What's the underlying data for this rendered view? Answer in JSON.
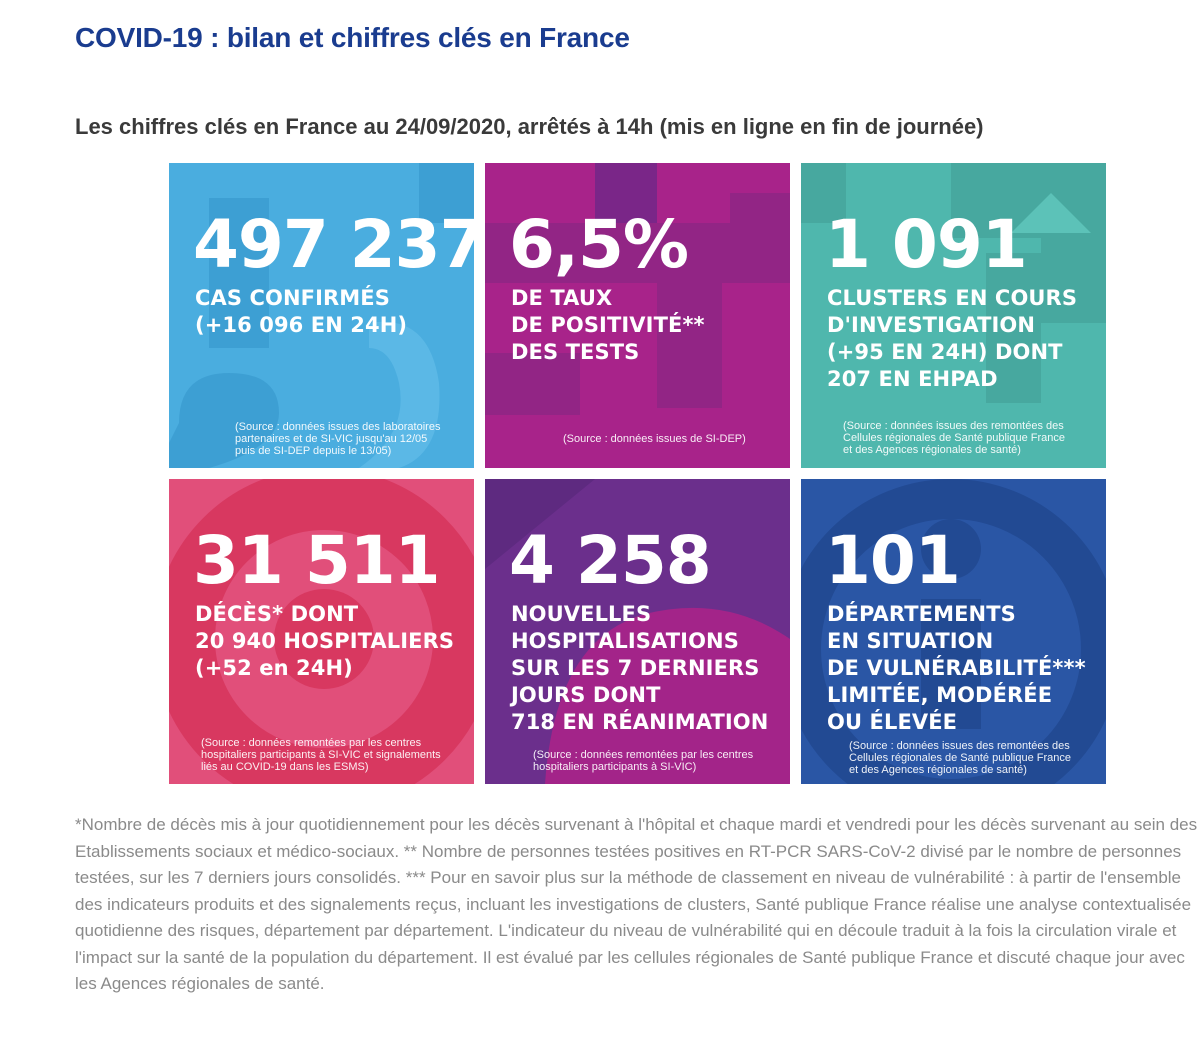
{
  "page": {
    "title": "COVID-19 : bilan et chiffres clés en France",
    "subtitle": "Les chiffres clés en France au 24/09/2020, arrêtés à 14h (mis en ligne en fin de journée)"
  },
  "tiles": [
    {
      "value": "497 237",
      "label": "CAS CONFIRMÉS\n(+16 096 EN 24H)",
      "source": "(Source : données issues des laboratoires\npartenaires et de SI-VIC jusqu'au 12/05\npuis de SI-DEP depuis le 13/05)",
      "color": "#4aaddf"
    },
    {
      "value": "6,5%",
      "label": "DE TAUX\nDE POSITIVITÉ**\nDES TESTS",
      "source": "(Source : données issues de SI-DEP)",
      "color": "#a8238a"
    },
    {
      "value": "1 091",
      "label": "CLUSTERS EN COURS\nD'INVESTIGATION\n(+95 EN 24H) DONT\n207 EN EHPAD",
      "source": "(Source : données issues des remontées des\nCellules régionales de Santé publique France\net des Agences régionales de santé)",
      "color": "#4fb7ad"
    },
    {
      "value": "31 511",
      "label": "DÉCÈS* DONT\n20 940 HOSPITALIERS\n(+52 en 24H)",
      "source": "(Source : données remontées par les centres\nhospitaliers participants à SI-VIC et signalements\nliés au COVID-19 dans les ESMS)",
      "color": "#e14f7a"
    },
    {
      "value": "4 258",
      "label": "NOUVELLES\nHOSPITALISATIONS\nSUR LES 7 DERNIERS\nJOURS DONT\n718 EN RÉANIMATION",
      "source": "(Source : données remontées par les centres\nhospitaliers participants à SI-VIC)",
      "color": "#6b2f8c"
    },
    {
      "value": "101",
      "label": "DÉPARTEMENTS\nEN SITUATION\nDE VULNÉRABILITÉ***\nLIMITÉE, MODÉRÉE\nOU ÉLEVÉE",
      "source": "(Source : données issues des remontées des\nCellules régionales de Santé publique France\net des Agences régionales de santé)",
      "color": "#2a56a5"
    }
  ],
  "footnote": "*Nombre de décès mis à jour quotidiennement pour les décès survenant à l'hôpital et chaque mardi et vendredi pour les décès survenant au sein des Etablissements sociaux et médico-sociaux. ** Nombre de personnes testées positives en RT-PCR SARS-CoV-2 divisé par le nombre de personnes testées, sur les 7 derniers jours consolidés. *** Pour en savoir plus sur la méthode de classement en niveau de vulnérabilité : à partir de l'ensemble des indicateurs produits et des signalements reçus, incluant les investigations de clusters, Santé publique France réalise une analyse contextualisée quotidienne des risques, département par département. L'indicateur du niveau de vulnérabilité qui en découle traduit à la fois la circulation virale et l'impact sur la santé de la population du département. Il est évalué par les cellules régionales de Santé publique France et discuté chaque jour avec les Agences régionales de santé."
}
